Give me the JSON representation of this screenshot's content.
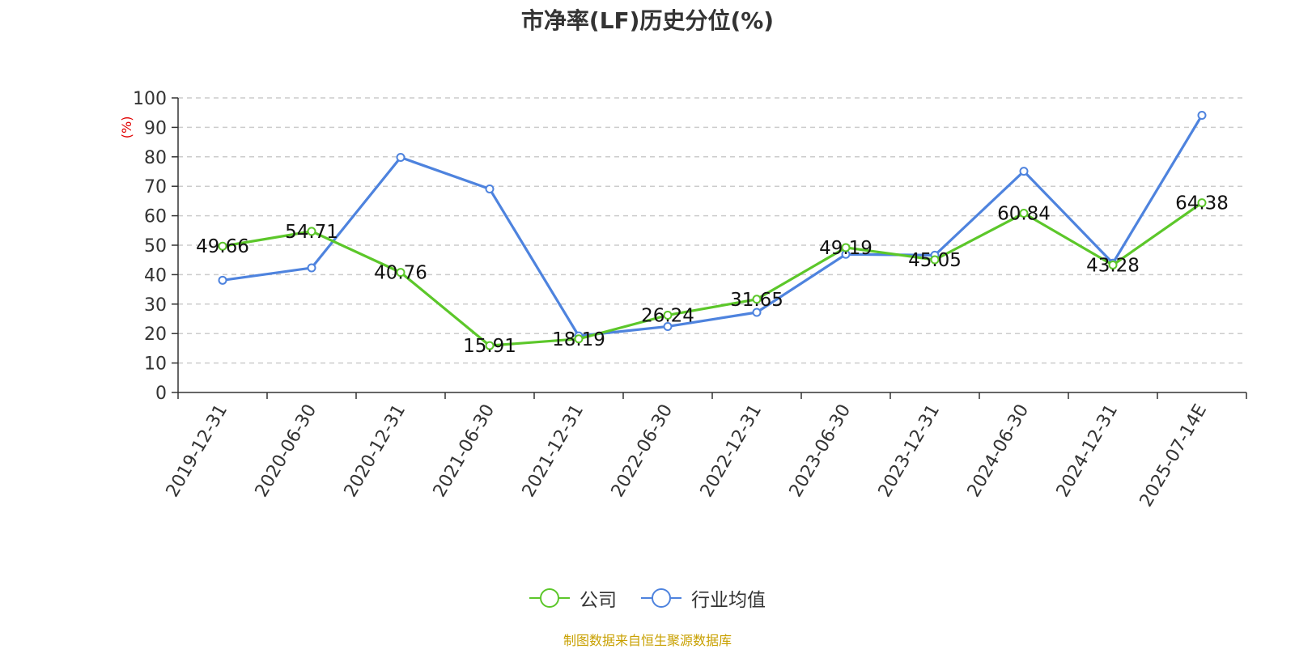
{
  "chart_data": {
    "type": "line",
    "title": "市净率(LF)历史分位(%)",
    "ylabel": "(%)",
    "ylim": [
      0,
      100
    ],
    "yticks": [
      0,
      10,
      20,
      30,
      40,
      50,
      60,
      70,
      80,
      90,
      100
    ],
    "grid": true,
    "legend_position": "bottom-center",
    "categories": [
      "2019-12-31",
      "2020-06-30",
      "2020-12-31",
      "2021-06-30",
      "2021-12-31",
      "2022-06-30",
      "2022-12-31",
      "2023-06-30",
      "2023-12-31",
      "2024-06-30",
      "2024-12-31",
      "2025-07-14E"
    ],
    "series": [
      {
        "name": "公司",
        "color": "#5cc72a",
        "values": [
          49.66,
          54.71,
          40.76,
          15.91,
          18.19,
          26.24,
          31.65,
          49.19,
          45.05,
          60.84,
          43.28,
          64.38
        ],
        "labels": [
          "49.66",
          "54.71",
          "40.76",
          "15.91",
          "18.19",
          "26.24",
          "31.65",
          "49.19",
          "45.05",
          "60.84",
          "43.28",
          "64.38"
        ]
      },
      {
        "name": "行业均值",
        "color": "#4e83de",
        "values": [
          38.1,
          42.3,
          79.8,
          69.1,
          19.2,
          22.4,
          27.2,
          46.9,
          46.6,
          75.1,
          43.9,
          94.1
        ]
      }
    ]
  },
  "source_note": "制图数据来自恒生聚源数据库"
}
